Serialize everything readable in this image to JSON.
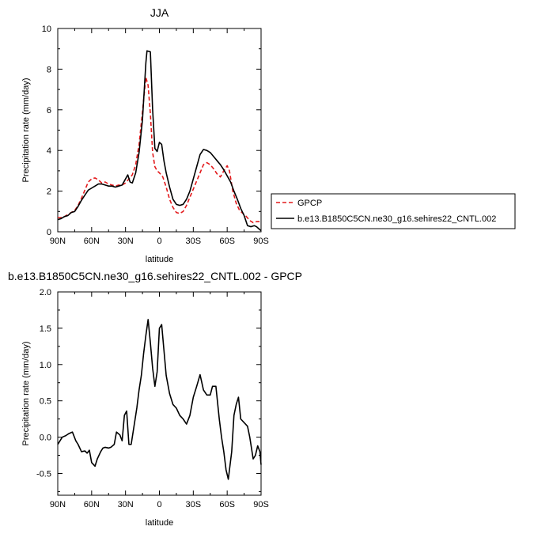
{
  "chart_data": [
    {
      "type": "line",
      "title": "JJA",
      "xlabel": "latitude",
      "ylabel": "Precipitation rate (mm/day)",
      "xlim": [
        90,
        -90
      ],
      "ylim": [
        0,
        10
      ],
      "x_tick_values": [
        90,
        60,
        30,
        0,
        -30,
        -60,
        -90
      ],
      "x_tick_labels": [
        "90N",
        "60N",
        "30N",
        "0",
        "30S",
        "60S",
        "90S"
      ],
      "y_ticks": [
        "0",
        "2",
        "4",
        "6",
        "8",
        "10"
      ],
      "y_tick_values": [
        0,
        2,
        4,
        6,
        8,
        10
      ],
      "legend_position": "right",
      "grid": false,
      "series": [
        {
          "name": "GPCP",
          "color": "#e31a1c",
          "dash": "dashed",
          "points": [
            [
              90,
              0.7
            ],
            [
              87,
              0.7
            ],
            [
              84,
              0.75
            ],
            [
              81,
              0.85
            ],
            [
              78,
              0.95
            ],
            [
              75,
              1.05
            ],
            [
              72,
              1.3
            ],
            [
              69,
              1.65
            ],
            [
              66,
              2.05
            ],
            [
              63,
              2.45
            ],
            [
              60,
              2.6
            ],
            [
              57,
              2.65
            ],
            [
              54,
              2.55
            ],
            [
              51,
              2.4
            ],
            [
              48,
              2.45
            ],
            [
              45,
              2.35
            ],
            [
              42,
              2.3
            ],
            [
              39,
              2.25
            ],
            [
              36,
              2.3
            ],
            [
              33,
              2.3
            ],
            [
              30,
              2.4
            ],
            [
              27,
              2.6
            ],
            [
              24,
              2.8
            ],
            [
              21,
              3.3
            ],
            [
              18,
              4.3
            ],
            [
              15,
              5.9
            ],
            [
              12,
              7.6
            ],
            [
              10,
              7.2
            ],
            [
              8,
              5.8
            ],
            [
              6,
              3.9
            ],
            [
              4,
              3.2
            ],
            [
              2,
              3.0
            ],
            [
              0,
              2.9
            ],
            [
              -3,
              2.7
            ],
            [
              -6,
              2.2
            ],
            [
              -9,
              1.6
            ],
            [
              -12,
              1.2
            ],
            [
              -15,
              0.95
            ],
            [
              -18,
              0.9
            ],
            [
              -21,
              1.0
            ],
            [
              -24,
              1.3
            ],
            [
              -27,
              1.7
            ],
            [
              -30,
              2.1
            ],
            [
              -33,
              2.5
            ],
            [
              -36,
              2.9
            ],
            [
              -39,
              3.3
            ],
            [
              -42,
              3.4
            ],
            [
              -45,
              3.3
            ],
            [
              -48,
              3.1
            ],
            [
              -51,
              2.85
            ],
            [
              -54,
              2.7
            ],
            [
              -57,
              3.0
            ],
            [
              -60,
              3.25
            ],
            [
              -62,
              3.0
            ],
            [
              -65,
              2.0
            ],
            [
              -68,
              1.4
            ],
            [
              -71,
              1.05
            ],
            [
              -74,
              0.9
            ],
            [
              -77,
              0.75
            ],
            [
              -80,
              0.55
            ],
            [
              -83,
              0.45
            ],
            [
              -86,
              0.5
            ],
            [
              -89,
              0.5
            ]
          ]
        },
        {
          "name": "b.e13.B1850C5CN.ne30_g16.sehires22_CNTL.002",
          "color": "#000000",
          "dash": "solid",
          "points": [
            [
              90,
              0.6
            ],
            [
              87,
              0.65
            ],
            [
              84,
              0.75
            ],
            [
              81,
              0.8
            ],
            [
              78,
              0.95
            ],
            [
              75,
              1.0
            ],
            [
              72,
              1.25
            ],
            [
              69,
              1.55
            ],
            [
              66,
              1.8
            ],
            [
              63,
              2.05
            ],
            [
              60,
              2.15
            ],
            [
              57,
              2.25
            ],
            [
              54,
              2.35
            ],
            [
              51,
              2.35
            ],
            [
              48,
              2.3
            ],
            [
              45,
              2.25
            ],
            [
              42,
              2.25
            ],
            [
              39,
              2.2
            ],
            [
              36,
              2.25
            ],
            [
              33,
              2.3
            ],
            [
              30,
              2.6
            ],
            [
              28,
              2.8
            ],
            [
              26,
              2.45
            ],
            [
              24,
              2.4
            ],
            [
              21,
              2.9
            ],
            [
              18,
              3.9
            ],
            [
              15,
              5.5
            ],
            [
              12,
              8.3
            ],
            [
              11,
              8.9
            ],
            [
              8,
              8.85
            ],
            [
              6,
              6.0
            ],
            [
              4,
              4.1
            ],
            [
              2,
              3.95
            ],
            [
              0,
              4.4
            ],
            [
              -2,
              4.3
            ],
            [
              -4,
              3.5
            ],
            [
              -6,
              2.9
            ],
            [
              -9,
              2.2
            ],
            [
              -12,
              1.6
            ],
            [
              -15,
              1.35
            ],
            [
              -18,
              1.3
            ],
            [
              -21,
              1.35
            ],
            [
              -24,
              1.6
            ],
            [
              -27,
              2.0
            ],
            [
              -30,
              2.6
            ],
            [
              -33,
              3.2
            ],
            [
              -36,
              3.8
            ],
            [
              -39,
              4.05
            ],
            [
              -42,
              4.0
            ],
            [
              -45,
              3.9
            ],
            [
              -48,
              3.7
            ],
            [
              -51,
              3.5
            ],
            [
              -54,
              3.3
            ],
            [
              -57,
              3.05
            ],
            [
              -60,
              2.75
            ],
            [
              -63,
              2.45
            ],
            [
              -66,
              2.0
            ],
            [
              -69,
              1.6
            ],
            [
              -72,
              1.15
            ],
            [
              -75,
              0.8
            ],
            [
              -78,
              0.3
            ],
            [
              -81,
              0.25
            ],
            [
              -84,
              0.3
            ],
            [
              -86,
              0.25
            ],
            [
              -88,
              0.15
            ],
            [
              -90,
              0.05
            ]
          ]
        }
      ]
    },
    {
      "type": "line",
      "title": "b.e13.B1850C5CN.ne30_g16.sehires22_CNTL.002 - GPCP",
      "xlabel": "latitude",
      "ylabel": "Precipitation rate (mm/day)",
      "xlim": [
        90,
        -90
      ],
      "ylim": [
        -0.8,
        2.0
      ],
      "x_tick_values": [
        90,
        60,
        30,
        0,
        -30,
        -60,
        -90
      ],
      "x_tick_labels": [
        "90N",
        "60N",
        "30N",
        "0",
        "30S",
        "60S",
        "90S"
      ],
      "y_ticks": [
        "-0.5",
        "0.0",
        "0.5",
        "1.0",
        "1.5",
        "2.0"
      ],
      "y_tick_values": [
        -0.5,
        0,
        0.5,
        1.0,
        1.5,
        2.0
      ],
      "grid": false,
      "series": [
        {
          "color": "#000000",
          "dash": "solid",
          "points": [
            [
              90,
              -0.1
            ],
            [
              88,
              -0.05
            ],
            [
              86,
              0.0
            ],
            [
              83,
              0.02
            ],
            [
              80,
              0.05
            ],
            [
              77,
              0.07
            ],
            [
              74,
              -0.05
            ],
            [
              72,
              -0.1
            ],
            [
              69,
              -0.2
            ],
            [
              66,
              -0.19
            ],
            [
              64,
              -0.22
            ],
            [
              62,
              -0.18
            ],
            [
              60,
              -0.35
            ],
            [
              57,
              -0.4
            ],
            [
              55,
              -0.3
            ],
            [
              52,
              -0.2
            ],
            [
              50,
              -0.15
            ],
            [
              48,
              -0.14
            ],
            [
              45,
              -0.15
            ],
            [
              43,
              -0.14
            ],
            [
              40,
              -0.1
            ],
            [
              38,
              0.07
            ],
            [
              35,
              0.03
            ],
            [
              33,
              -0.05
            ],
            [
              31,
              0.3
            ],
            [
              29,
              0.36
            ],
            [
              27,
              -0.1
            ],
            [
              25,
              -0.1
            ],
            [
              22,
              0.2
            ],
            [
              20,
              0.4
            ],
            [
              18,
              0.65
            ],
            [
              16,
              0.85
            ],
            [
              14,
              1.15
            ],
            [
              12,
              1.4
            ],
            [
              10,
              1.62
            ],
            [
              8,
              1.3
            ],
            [
              6,
              0.95
            ],
            [
              4,
              0.7
            ],
            [
              2,
              0.9
            ],
            [
              0,
              1.5
            ],
            [
              -2,
              1.55
            ],
            [
              -4,
              1.2
            ],
            [
              -6,
              0.85
            ],
            [
              -9,
              0.6
            ],
            [
              -12,
              0.45
            ],
            [
              -15,
              0.4
            ],
            [
              -18,
              0.3
            ],
            [
              -21,
              0.25
            ],
            [
              -24,
              0.18
            ],
            [
              -27,
              0.3
            ],
            [
              -30,
              0.55
            ],
            [
              -33,
              0.7
            ],
            [
              -36,
              0.86
            ],
            [
              -39,
              0.65
            ],
            [
              -42,
              0.58
            ],
            [
              -45,
              0.58
            ],
            [
              -47,
              0.7
            ],
            [
              -50,
              0.7
            ],
            [
              -53,
              0.25
            ],
            [
              -55,
              0.0
            ],
            [
              -57,
              -0.2
            ],
            [
              -59,
              -0.45
            ],
            [
              -61,
              -0.58
            ],
            [
              -64,
              -0.2
            ],
            [
              -66,
              0.3
            ],
            [
              -68,
              0.45
            ],
            [
              -70,
              0.55
            ],
            [
              -72,
              0.25
            ],
            [
              -75,
              0.2
            ],
            [
              -78,
              0.15
            ],
            [
              -80,
              0.0
            ],
            [
              -83,
              -0.3
            ],
            [
              -85,
              -0.25
            ],
            [
              -87,
              -0.12
            ],
            [
              -89,
              -0.2
            ],
            [
              -90,
              -0.38
            ]
          ]
        }
      ]
    }
  ]
}
